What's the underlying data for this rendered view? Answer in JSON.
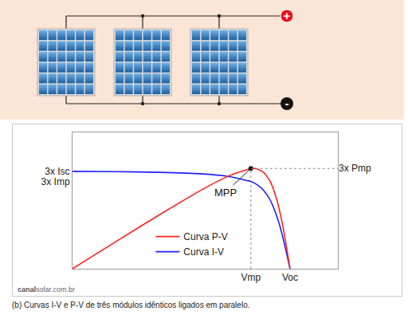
{
  "diagram": {
    "modules": 3,
    "positive": "+",
    "negative": "-"
  },
  "chart_data": {
    "type": "line",
    "x": [
      0,
      20,
      40,
      60,
      70,
      75,
      80,
      82,
      85,
      88,
      91,
      94,
      96,
      98,
      100
    ],
    "series": [
      {
        "name": "Curva P-V",
        "color": "#ff2020",
        "axis": "y2",
        "values": [
          0,
          59.8,
          118.8,
          175.2,
          200.2,
          210,
          217.6,
          220.6,
          219.3,
          211.2,
          191.1,
          150.4,
          110.4,
          58.8,
          0
        ]
      },
      {
        "name": "Curva I-V",
        "color": "#2020ff",
        "values": [
          3,
          2.99,
          2.97,
          2.92,
          2.86,
          2.8,
          2.72,
          2.69,
          2.58,
          2.4,
          2.1,
          1.6,
          1.15,
          0.6,
          0
        ]
      }
    ],
    "xlim": [
      0,
      122
    ],
    "ylim": [
      0,
      4.2
    ],
    "y2lim": [
      0,
      300
    ],
    "xticks": [
      {
        "value": 82,
        "label": "Vmp"
      },
      {
        "value": 100,
        "label": "Voc"
      }
    ],
    "yticks": [
      {
        "value": 2.69,
        "label": "3x Imp"
      },
      {
        "value": 3,
        "label": "3x Isc"
      }
    ],
    "y2ticks": [
      {
        "value": 220.6,
        "label": "3x Pmp"
      }
    ],
    "annotations": [
      {
        "text": "MPP",
        "x": 82,
        "y": 220.6,
        "axis": "y2"
      }
    ],
    "legend": "bottom",
    "grid": false
  },
  "source": {
    "bold": "canal",
    "rest": "solar.com.br"
  },
  "caption": "(b) Curvas I-V e P-V de três módulos idênticos ligados em paralelo."
}
